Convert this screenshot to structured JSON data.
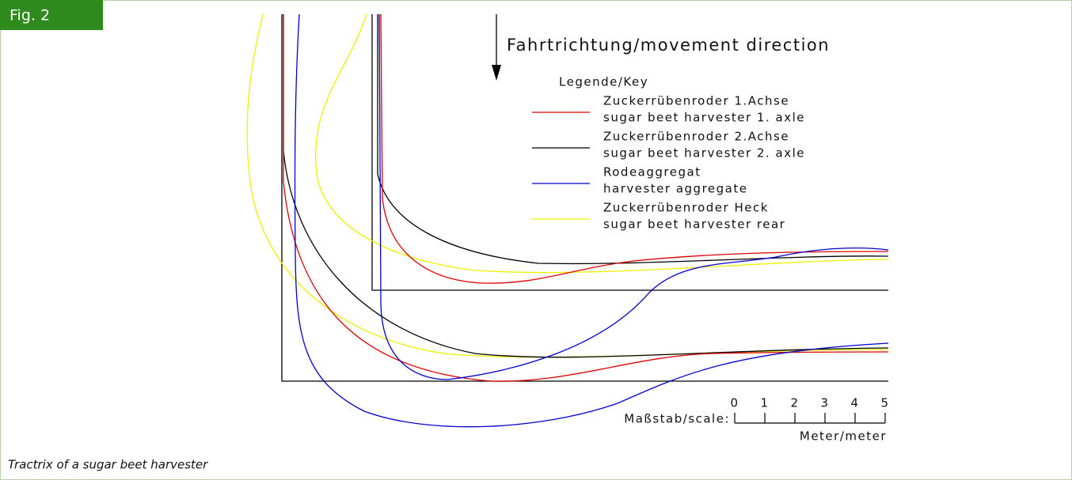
{
  "figure_label": "Fig. 2",
  "direction": "Fahrtrichtung/movement direction",
  "legend": {
    "title": "Legende/Key",
    "items": [
      {
        "lines": [
          "Zuckerrübenroder 1.Achse",
          "sugar beet harvester 1. axle"
        ],
        "color": "#e00000"
      },
      {
        "lines": [
          "Zuckerrübenroder 2.Achse",
          "sugar beet harvester 2. axle"
        ],
        "color": "#000000"
      },
      {
        "lines": [
          "Rodeaggregat",
          "harvester aggregate"
        ],
        "color": "#0000d0"
      },
      {
        "lines": [
          "Zuckerrübenroder Heck",
          "sugar beet harvester rear"
        ],
        "color": "#f0f000"
      }
    ]
  },
  "scale": {
    "label": "Maßstab/scale:",
    "ticks": [
      0,
      1,
      2,
      3,
      4,
      5
    ],
    "unit": "Meter/meter"
  },
  "caption": "Tractrix of a sugar beet harvester"
}
